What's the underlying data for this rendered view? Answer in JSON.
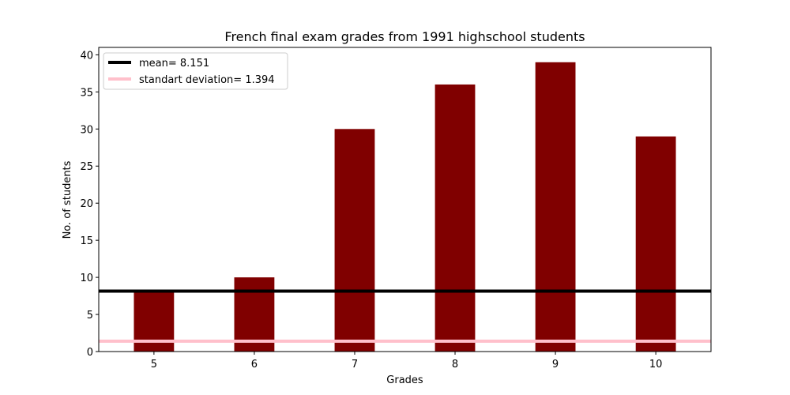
{
  "chart_data": {
    "type": "bar",
    "title": "French final exam grades from 1991 highschool students",
    "xlabel": "Grades",
    "ylabel": "No. of students",
    "categories": [
      "5",
      "6",
      "7",
      "8",
      "9",
      "10"
    ],
    "values": [
      8,
      10,
      30,
      36,
      39,
      29
    ],
    "bar_color": "#800000",
    "ylim": [
      0,
      41
    ],
    "yticks": [
      0,
      5,
      10,
      15,
      20,
      25,
      30,
      35,
      40
    ],
    "grid": false,
    "legend_position": "top-left",
    "reference_lines": [
      {
        "label": "mean= 8.151",
        "value": 8.151,
        "color": "#000000"
      },
      {
        "label": "standart deviation= 1.394",
        "value": 1.394,
        "color": "#ffc0cb"
      }
    ]
  }
}
